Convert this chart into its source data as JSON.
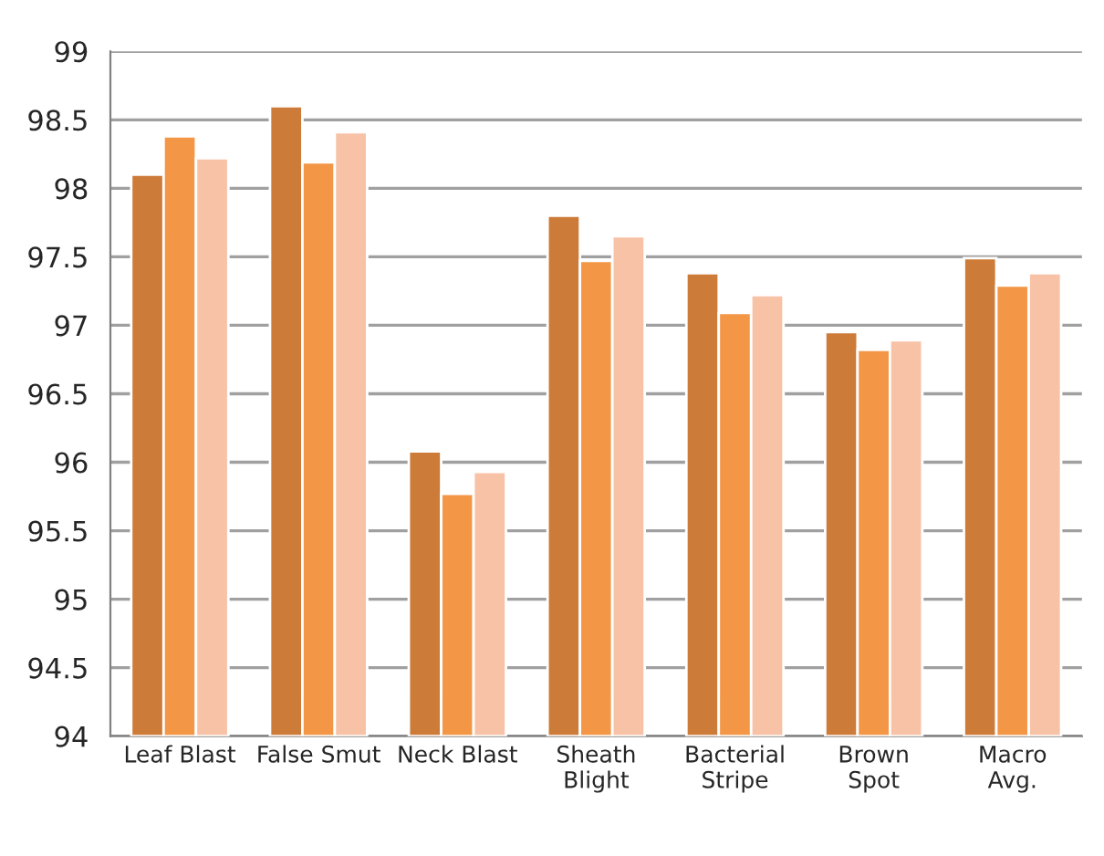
{
  "chart_data": {
    "type": "bar",
    "categories": [
      "Leaf Blast",
      "False Smut",
      "Neck Blast",
      "Sheath\nBlight",
      "Bacterial\nStripe",
      "Brown\nSpot",
      "Macro\nAvg."
    ],
    "series": [
      {
        "color": "#cd7b39",
        "values": [
          98.1,
          98.6,
          96.08,
          97.8,
          97.38,
          96.95,
          97.49
        ]
      },
      {
        "color": "#f39646",
        "values": [
          98.38,
          98.19,
          95.77,
          97.47,
          97.09,
          96.82,
          97.29
        ]
      },
      {
        "color": "#f8c2a6",
        "values": [
          98.22,
          98.41,
          95.93,
          97.65,
          97.22,
          96.89,
          97.38
        ]
      }
    ],
    "ylim": [
      94,
      99
    ],
    "yticks": [
      94,
      94.5,
      95,
      95.5,
      96,
      96.5,
      97,
      97.5,
      98,
      98.5,
      99
    ],
    "grid": "y"
  }
}
